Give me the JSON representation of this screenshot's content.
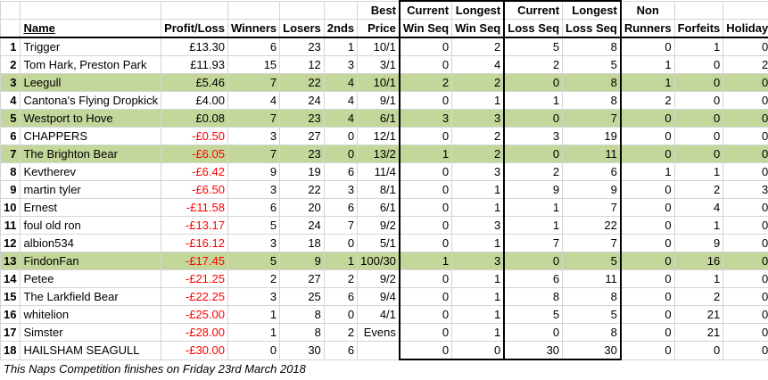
{
  "headers": {
    "row1": {
      "best": "Best",
      "current_win": "Current",
      "longest_win": "Longest",
      "current_loss": "Current",
      "longest_loss": "Longest",
      "non": "Non"
    },
    "row2": {
      "name": "Name",
      "profit": "Profit/Loss",
      "winners": "Winners",
      "losers": "Losers",
      "seconds": "2nds",
      "price": "Price",
      "current_win": "Win Seq",
      "longest_win": "Win Seq",
      "current_loss": "Loss Seq",
      "longest_loss": "Loss Seq",
      "non": "Runners",
      "forfeits": "Forfeits",
      "holiday": "Holiday"
    }
  },
  "rows": [
    {
      "rank": "1",
      "name": "Trigger",
      "profit": "£13.30",
      "neg": false,
      "hl": false,
      "winners": "6",
      "losers": "23",
      "seconds": "1",
      "price": "10/1",
      "cws": "0",
      "lws": "2",
      "cls": "5",
      "lls": "8",
      "nr": "0",
      "forfeits": "1",
      "holiday": "0"
    },
    {
      "rank": "2",
      "name": "Tom Hark, Preston Park",
      "profit": "£11.93",
      "neg": false,
      "hl": false,
      "winners": "15",
      "losers": "12",
      "seconds": "3",
      "price": "3/1",
      "cws": "0",
      "lws": "4",
      "cls": "2",
      "lls": "5",
      "nr": "1",
      "forfeits": "0",
      "holiday": "2"
    },
    {
      "rank": "3",
      "name": "Leegull",
      "profit": "£5.46",
      "neg": false,
      "hl": true,
      "winners": "7",
      "losers": "22",
      "seconds": "4",
      "price": "10/1",
      "cws": "2",
      "lws": "2",
      "cls": "0",
      "lls": "8",
      "nr": "1",
      "forfeits": "0",
      "holiday": "0"
    },
    {
      "rank": "4",
      "name": "Cantona's Flying Dropkick",
      "profit": "£4.00",
      "neg": false,
      "hl": false,
      "winners": "4",
      "losers": "24",
      "seconds": "4",
      "price": "9/1",
      "cws": "0",
      "lws": "1",
      "cls": "1",
      "lls": "8",
      "nr": "2",
      "forfeits": "0",
      "holiday": "0"
    },
    {
      "rank": "5",
      "name": "Westport to Hove",
      "profit": "£0.08",
      "neg": false,
      "hl": true,
      "winners": "7",
      "losers": "23",
      "seconds": "4",
      "price": "6/1",
      "cws": "3",
      "lws": "3",
      "cls": "0",
      "lls": "7",
      "nr": "0",
      "forfeits": "0",
      "holiday": "0"
    },
    {
      "rank": "6",
      "name": "CHAPPERS",
      "profit": "-£0.50",
      "neg": true,
      "hl": false,
      "winners": "3",
      "losers": "27",
      "seconds": "0",
      "price": "12/1",
      "cws": "0",
      "lws": "2",
      "cls": "3",
      "lls": "19",
      "nr": "0",
      "forfeits": "0",
      "holiday": "0"
    },
    {
      "rank": "7",
      "name": "The Brighton Bear",
      "profit": "-£6.05",
      "neg": true,
      "hl": true,
      "winners": "7",
      "losers": "23",
      "seconds": "0",
      "price": "13/2",
      "cws": "1",
      "lws": "2",
      "cls": "0",
      "lls": "11",
      "nr": "0",
      "forfeits": "0",
      "holiday": "0"
    },
    {
      "rank": "8",
      "name": "Kevtherev",
      "profit": "-£6.42",
      "neg": true,
      "hl": false,
      "winners": "9",
      "losers": "19",
      "seconds": "6",
      "price": "11/4",
      "cws": "0",
      "lws": "3",
      "cls": "2",
      "lls": "6",
      "nr": "1",
      "forfeits": "1",
      "holiday": "0"
    },
    {
      "rank": "9",
      "name": "martin tyler",
      "profit": "-£6.50",
      "neg": true,
      "hl": false,
      "winners": "3",
      "losers": "22",
      "seconds": "3",
      "price": "8/1",
      "cws": "0",
      "lws": "1",
      "cls": "9",
      "lls": "9",
      "nr": "0",
      "forfeits": "2",
      "holiday": "3"
    },
    {
      "rank": "10",
      "name": "Ernest",
      "profit": "-£11.58",
      "neg": true,
      "hl": false,
      "winners": "6",
      "losers": "20",
      "seconds": "6",
      "price": "6/1",
      "cws": "0",
      "lws": "1",
      "cls": "1",
      "lls": "7",
      "nr": "0",
      "forfeits": "4",
      "holiday": "0"
    },
    {
      "rank": "11",
      "name": "foul old ron",
      "profit": "-£13.17",
      "neg": true,
      "hl": false,
      "winners": "5",
      "losers": "24",
      "seconds": "7",
      "price": "9/2",
      "cws": "0",
      "lws": "3",
      "cls": "1",
      "lls": "22",
      "nr": "0",
      "forfeits": "1",
      "holiday": "0"
    },
    {
      "rank": "12",
      "name": "albion534",
      "profit": "-£16.12",
      "neg": true,
      "hl": false,
      "winners": "3",
      "losers": "18",
      "seconds": "0",
      "price": "5/1",
      "cws": "0",
      "lws": "1",
      "cls": "7",
      "lls": "7",
      "nr": "0",
      "forfeits": "9",
      "holiday": "0"
    },
    {
      "rank": "13",
      "name": "FindonFan",
      "profit": "-£17.45",
      "neg": true,
      "hl": true,
      "winners": "5",
      "losers": "9",
      "seconds": "1",
      "price": "100/30",
      "cws": "1",
      "lws": "3",
      "cls": "0",
      "lls": "5",
      "nr": "0",
      "forfeits": "16",
      "holiday": "0"
    },
    {
      "rank": "14",
      "name": "Petee",
      "profit": "-£21.25",
      "neg": true,
      "hl": false,
      "winners": "2",
      "losers": "27",
      "seconds": "2",
      "price": "9/2",
      "cws": "0",
      "lws": "1",
      "cls": "6",
      "lls": "11",
      "nr": "0",
      "forfeits": "1",
      "holiday": "0"
    },
    {
      "rank": "15",
      "name": "The Larkfield Bear",
      "profit": "-£22.25",
      "neg": true,
      "hl": false,
      "winners": "3",
      "losers": "25",
      "seconds": "6",
      "price": "9/4",
      "cws": "0",
      "lws": "1",
      "cls": "8",
      "lls": "8",
      "nr": "0",
      "forfeits": "2",
      "holiday": "0"
    },
    {
      "rank": "16",
      "name": "whitelion",
      "profit": "-£25.00",
      "neg": true,
      "hl": false,
      "winners": "1",
      "losers": "8",
      "seconds": "0",
      "price": "4/1",
      "cws": "0",
      "lws": "1",
      "cls": "5",
      "lls": "5",
      "nr": "0",
      "forfeits": "21",
      "holiday": "0"
    },
    {
      "rank": "17",
      "name": "Simster",
      "profit": "-£28.00",
      "neg": true,
      "hl": false,
      "winners": "1",
      "losers": "8",
      "seconds": "2",
      "price": "Evens",
      "cws": "0",
      "lws": "1",
      "cls": "0",
      "lls": "8",
      "nr": "0",
      "forfeits": "21",
      "holiday": "0"
    },
    {
      "rank": "18",
      "name": "HAILSHAM SEAGULL",
      "profit": "-£30.00",
      "neg": true,
      "hl": false,
      "winners": "0",
      "losers": "30",
      "seconds": "6",
      "price": "",
      "cws": "0",
      "lws": "0",
      "cls": "30",
      "lls": "30",
      "nr": "0",
      "forfeits": "0",
      "holiday": "0"
    }
  ],
  "footer": "This Naps Competition finishes on Friday 23rd March 2018"
}
